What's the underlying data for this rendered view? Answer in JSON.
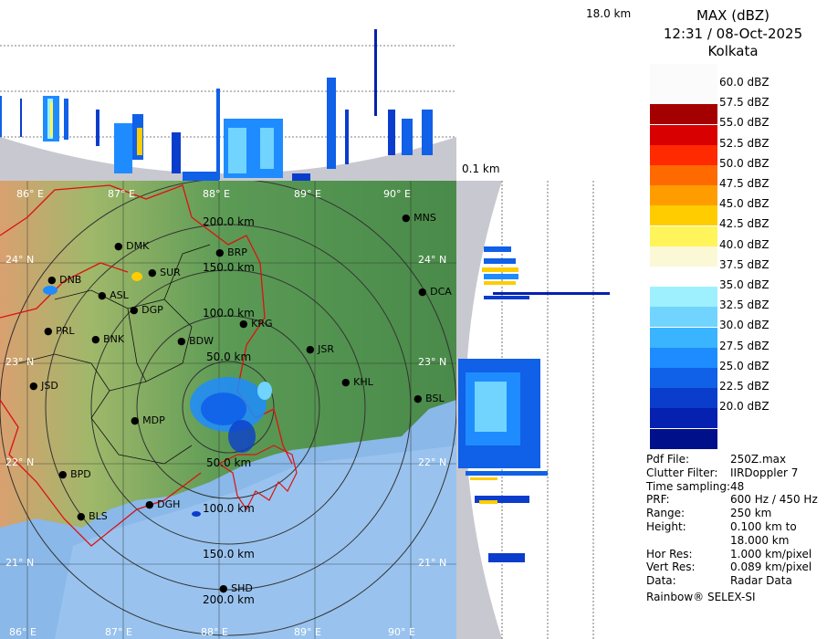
{
  "header": {
    "top_km_label": "18.0 km",
    "bottom_km_label": "0.1 km"
  },
  "legend": {
    "title": "MAX (dBZ)",
    "datetime": "12:31 / 08-Oct-2025",
    "station": "Kolkata",
    "scale": [
      {
        "label": "60.0 dBZ",
        "color": "#fbfbfb"
      },
      {
        "label": "57.5 dBZ",
        "color": "#fbfbfb"
      },
      {
        "label": "55.0 dBZ",
        "color": "#a50000"
      },
      {
        "label": "52.5 dBZ",
        "color": "#d80000"
      },
      {
        "label": "50.0 dBZ",
        "color": "#ff2a00"
      },
      {
        "label": "47.5 dBZ",
        "color": "#ff6a00"
      },
      {
        "label": "45.0 dBZ",
        "color": "#ff9d00"
      },
      {
        "label": "42.5 dBZ",
        "color": "#ffcc00"
      },
      {
        "label": "40.0 dBZ",
        "color": "#fff45a"
      },
      {
        "label": "37.5 dBZ",
        "color": "#fbf8d6"
      },
      {
        "label": "35.0 dBZ",
        "color": "#ffffff"
      },
      {
        "label": "32.5 dBZ",
        "color": "#9ef0ff"
      },
      {
        "label": "30.0 dBZ",
        "color": "#70d4ff"
      },
      {
        "label": "27.5 dBZ",
        "color": "#3ab4ff"
      },
      {
        "label": "25.0 dBZ",
        "color": "#1e8cff"
      },
      {
        "label": "22.5 dBZ",
        "color": "#1060e8"
      },
      {
        "label": "20.0 dBZ",
        "color": "#0b3dcc"
      },
      {
        "label": "",
        "color": "#0620b0"
      },
      {
        "label": "",
        "color": "#00108a"
      }
    ],
    "info": [
      {
        "key": "Pdf File:",
        "value": "250Z.max"
      },
      {
        "key": "Clutter Filter:",
        "value": "IIRDoppler 7"
      },
      {
        "key": "Time sampling:",
        "value": "48"
      },
      {
        "key": "PRF:",
        "value": "600 Hz / 450 Hz"
      },
      {
        "key": "Range:",
        "value": "250 km"
      },
      {
        "key": "Height:",
        "value": "0.100 km to"
      },
      {
        "key": "",
        "value": "18.000 km"
      },
      {
        "key": "Hor Res:",
        "value": "1.000 km/pixel"
      },
      {
        "key": "Vert Res:",
        "value": "0.089 km/pixel"
      },
      {
        "key": "Data:",
        "value": "Radar Data"
      }
    ],
    "footer": "Rainbow® SELEX-SI"
  },
  "map": {
    "lon_labels_top": [
      "86° E",
      "87° E",
      "88° E",
      "89° E",
      "90° E"
    ],
    "lon_labels_bottom": [
      "86° E",
      "87° E",
      "88° E",
      "89° E",
      "90° E"
    ],
    "lat_labels_left": [
      "24° N",
      "23° N",
      "22° N",
      "21° N"
    ],
    "lat_labels_right": [
      "24° N",
      "23° N",
      "22° N",
      "21° N"
    ],
    "range_rings": [
      "200.0 km",
      "150.0 km",
      "100.0 km",
      "50.0 km",
      "50.0 km",
      "100.0 km",
      "150.0 km",
      "200.0 km"
    ],
    "cities": [
      {
        "name": "MNS"
      },
      {
        "name": "DMK"
      },
      {
        "name": "BRP"
      },
      {
        "name": "DNB"
      },
      {
        "name": "SUR"
      },
      {
        "name": "ASL"
      },
      {
        "name": "DGP"
      },
      {
        "name": "DCA"
      },
      {
        "name": "KRG"
      },
      {
        "name": "PRL"
      },
      {
        "name": "BNK"
      },
      {
        "name": "BDW"
      },
      {
        "name": "JSR"
      },
      {
        "name": "KHL"
      },
      {
        "name": "JSD"
      },
      {
        "name": "BSL"
      },
      {
        "name": "MDP"
      },
      {
        "name": "BPD"
      },
      {
        "name": "DGH"
      },
      {
        "name": "BLS"
      },
      {
        "name": "SHD"
      }
    ]
  }
}
